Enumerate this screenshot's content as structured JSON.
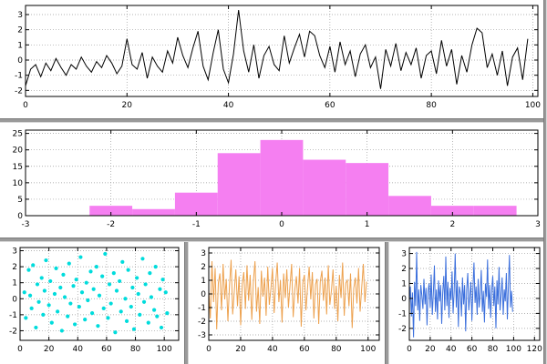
{
  "window": {
    "background": "#ffffff"
  },
  "colors": {
    "axis": "#000000",
    "grid": "#9a9a9a",
    "frame_gray": "#9a9a9a",
    "series_black": "#000000",
    "series_pink": "#f57ff1",
    "series_cyan": "#00dcdc",
    "series_orange": "#eda14e",
    "series_blue": "#3b6fdc"
  },
  "chart_data": [
    {
      "panel": "top",
      "type": "line",
      "name": "noise-line-chart",
      "color": "#000000",
      "xlim": [
        0,
        101
      ],
      "ylim": [
        -2.4,
        3.6
      ],
      "xticks": [
        0,
        20,
        40,
        60,
        80,
        100
      ],
      "yticks": [
        -2,
        -1,
        0,
        1,
        2,
        3
      ],
      "grid": true,
      "x0": 0,
      "dx": 1,
      "y": [
        -1.7,
        -0.6,
        -0.3,
        -1.1,
        -0.2,
        -0.7,
        0.1,
        -0.5,
        -1.0,
        -0.3,
        -0.6,
        0.2,
        -0.4,
        -0.8,
        -0.1,
        -0.5,
        0.3,
        -0.2,
        -0.9,
        -0.4,
        1.4,
        -0.3,
        -0.6,
        0.5,
        -1.2,
        0.2,
        -0.4,
        -0.8,
        0.6,
        -0.2,
        1.5,
        0.3,
        -0.5,
        0.8,
        1.9,
        -0.4,
        -1.3,
        0.5,
        2.0,
        -0.6,
        -1.5,
        0.4,
        3.3,
        0.6,
        -0.8,
        1.0,
        -1.2,
        0.3,
        0.9,
        -0.3,
        -0.7,
        1.6,
        -0.2,
        0.8,
        1.7,
        0.2,
        1.9,
        1.6,
        0.3,
        -0.5,
        0.9,
        -0.8,
        1.2,
        -0.3,
        0.6,
        -1.1,
        0.4,
        1.0,
        -0.5,
        0.2,
        -1.9,
        0.7,
        -0.4,
        1.1,
        -0.7,
        0.5,
        -0.3,
        0.8,
        -1.2,
        0.3,
        0.6,
        -0.9,
        1.3,
        -0.4,
        0.7,
        -1.6,
        0.3,
        -0.8,
        1.0,
        2.1,
        1.8,
        -0.5,
        0.4,
        -1.0,
        0.6,
        -1.7,
        0.2,
        0.8,
        -1.3,
        1.4
      ]
    },
    {
      "panel": "hist",
      "type": "histogram",
      "name": "distribution-histogram",
      "color": "#f57ff1",
      "xlim": [
        -3,
        3
      ],
      "ylim": [
        0,
        26
      ],
      "xticks": [
        -3,
        -2,
        -1,
        0,
        1,
        2,
        3
      ],
      "yticks": [
        0,
        5,
        10,
        15,
        20,
        25
      ],
      "grid": true,
      "bins": {
        "start": -2.25,
        "width": 0.5,
        "counts": [
          3,
          2,
          7,
          19,
          23,
          17,
          16,
          6,
          3,
          3
        ]
      }
    },
    {
      "panel": "scatter",
      "type": "scatter",
      "name": "cyan-scatter-chart",
      "color": "#00dcdc",
      "xlim": [
        0,
        110
      ],
      "ylim": [
        -2.6,
        3.2
      ],
      "xticks": [
        0,
        20,
        40,
        60,
        80,
        100
      ],
      "yticks": [
        -2,
        -1,
        0,
        1,
        2,
        3
      ],
      "grid": true,
      "points": [
        [
          3,
          0.4
        ],
        [
          4,
          -1.2
        ],
        [
          6,
          1.8
        ],
        [
          7,
          0.2
        ],
        [
          8,
          -0.6
        ],
        [
          9,
          2.1
        ],
        [
          11,
          -1.8
        ],
        [
          12,
          0.9
        ],
        [
          13,
          -0.2
        ],
        [
          15,
          1.3
        ],
        [
          16,
          -1.0
        ],
        [
          17,
          0.5
        ],
        [
          18,
          2.4
        ],
        [
          20,
          -0.4
        ],
        [
          21,
          1.1
        ],
        [
          22,
          -1.5
        ],
        [
          24,
          0.3
        ],
        [
          25,
          1.9
        ],
        [
          26,
          -0.8
        ],
        [
          28,
          0.7
        ],
        [
          29,
          -2.0
        ],
        [
          30,
          1.5
        ],
        [
          31,
          0.1
        ],
        [
          33,
          -1.1
        ],
        [
          34,
          2.2
        ],
        [
          35,
          -0.3
        ],
        [
          37,
          0.8
        ],
        [
          38,
          -1.6
        ],
        [
          39,
          1.2
        ],
        [
          41,
          -0.5
        ],
        [
          42,
          2.6
        ],
        [
          43,
          0.4
        ],
        [
          45,
          -1.3
        ],
        [
          46,
          1.0
        ],
        [
          47,
          -0.1
        ],
        [
          49,
          1.7
        ],
        [
          50,
          -0.9
        ],
        [
          51,
          0.6
        ],
        [
          53,
          2.0
        ],
        [
          54,
          -1.7
        ],
        [
          55,
          0.2
        ],
        [
          57,
          1.4
        ],
        [
          58,
          -0.6
        ],
        [
          59,
          2.8
        ],
        [
          61,
          -1.2
        ],
        [
          62,
          0.9
        ],
        [
          63,
          -0.3
        ],
        [
          65,
          1.6
        ],
        [
          66,
          -2.1
        ],
        [
          67,
          0.5
        ],
        [
          69,
          1.1
        ],
        [
          70,
          -0.8
        ],
        [
          71,
          2.3
        ],
        [
          73,
          0.0
        ],
        [
          74,
          -1.4
        ],
        [
          75,
          1.8
        ],
        [
          77,
          -0.5
        ],
        [
          78,
          0.7
        ],
        [
          79,
          -1.9
        ],
        [
          81,
          1.3
        ],
        [
          82,
          0.3
        ],
        [
          83,
          -1.0
        ],
        [
          85,
          2.5
        ],
        [
          86,
          -0.2
        ],
        [
          87,
          0.9
        ],
        [
          89,
          -1.5
        ],
        [
          90,
          1.6
        ],
        [
          91,
          0.1
        ],
        [
          93,
          -0.7
        ],
        [
          94,
          2.0
        ],
        [
          95,
          -1.1
        ],
        [
          97,
          0.6
        ],
        [
          98,
          -1.8
        ],
        [
          99,
          1.2
        ],
        [
          101,
          0.4
        ],
        [
          102,
          -0.9
        ]
      ]
    },
    {
      "panel": "impulse",
      "type": "line",
      "name": "orange-noise-chart",
      "color": "#eda14e",
      "xlim": [
        0,
        107
      ],
      "ylim": [
        -3.4,
        3.4
      ],
      "xticks": [
        0,
        20,
        40,
        60,
        80,
        100
      ],
      "yticks": [
        -3,
        -2,
        -1,
        0,
        1,
        2,
        3
      ],
      "grid": true,
      "x0": 0,
      "dx": 1,
      "y": [
        0.3,
        -1.8,
        2.4,
        -0.6,
        1.9,
        -2.6,
        0.8,
        1.5,
        -1.2,
        2.2,
        -0.4,
        1.1,
        -2.0,
        0.6,
        2.5,
        -1.5,
        0.2,
        1.8,
        -0.9,
        1.3,
        -2.3,
        0.7,
        1.6,
        -1.1,
        2.1,
        -0.5,
        1.4,
        -1.9,
        0.9,
        2.4,
        -1.3,
        0.5,
        -2.2,
        1.7,
        -0.2,
        1.2,
        -1.6,
        2.0,
        -0.8,
        0.4,
        1.9,
        -1.4,
        0.8,
        2.3,
        -0.6,
        1.0,
        -2.1,
        1.5,
        -0.3,
        1.8,
        -1.0,
        0.6,
        2.2,
        -1.7,
        0.3,
        1.3,
        -0.7,
        1.9,
        -2.4,
        0.8,
        1.4,
        -1.2,
        0.5,
        2.0,
        -0.4,
        1.6,
        -1.8,
        0.7,
        1.1,
        -2.2,
        0.9,
        1.7,
        -0.5,
        1.2,
        -1.5,
        2.1,
        -0.8,
        0.3,
        1.8,
        -1.1,
        0.6,
        -2.0,
        1.4,
        -0.3,
        2.3,
        -1.6,
        0.8,
        1.0,
        -0.9,
        1.5,
        -2.5,
        0.4,
        1.2,
        -0.7,
        1.9,
        -1.3,
        0.5,
        2.2,
        -0.6,
        0.9
      ]
    },
    {
      "panel": "blue",
      "type": "line",
      "name": "blue-noise-chart",
      "color": "#3b6fdc",
      "xlim": [
        0,
        125
      ],
      "ylim": [
        -2.8,
        3.4
      ],
      "xticks": [
        0,
        20,
        40,
        60,
        80,
        100,
        120
      ],
      "yticks": [
        -2,
        -1,
        0,
        1,
        2,
        3
      ],
      "grid": true,
      "x0": 0,
      "dx": 1,
      "y": [
        -0.3,
        0.8,
        -1.2,
        0.4,
        -2.6,
        1.1,
        -0.5,
        3.1,
        -0.8,
        0.6,
        -1.5,
        0.9,
        0.2,
        -0.7,
        1.3,
        -0.4,
        0.7,
        -1.8,
        0.5,
        1.0,
        -0.6,
        1.6,
        -1.1,
        0.3,
        2.2,
        -0.9,
        0.6,
        -1.4,
        1.2,
        -0.2,
        0.9,
        -1.7,
        0.4,
        1.5,
        -0.8,
        2.8,
        -0.5,
        1.1,
        -1.3,
        0.7,
        -0.1,
        1.8,
        -1.0,
        0.5,
        3.0,
        -0.6,
        1.2,
        -1.9,
        0.8,
        0.3,
        -1.2,
        1.4,
        -0.4,
        0.9,
        -2.2,
        0.6,
        1.7,
        -0.8,
        0.2,
        1.1,
        -1.5,
        0.7,
        2.4,
        -0.3,
        0.8,
        -1.1,
        1.3,
        -0.6,
        0.4,
        1.9,
        -0.9,
        0.5,
        -1.6,
        1.0,
        0.1,
        2.6,
        -0.7,
        0.9,
        -1.3,
        0.6,
        1.5,
        -0.5,
        0.8,
        -2.0,
        1.2,
        -0.4,
        2.1,
        -0.8,
        0.3,
        1.4,
        -1.1,
        0.6,
        -0.2,
        1.7,
        -1.4,
        0.9,
        2.9,
        -0.6,
        0.5,
        -0.9
      ]
    }
  ]
}
